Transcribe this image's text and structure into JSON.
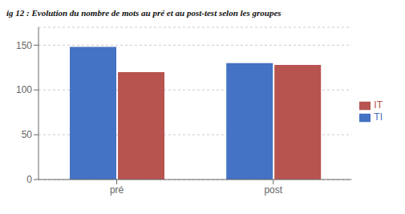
{
  "chart_data": {
    "type": "bar",
    "title": "ig 12 : Evolution du nombre de mots au pré et au post-test selon les groupes",
    "categories": [
      "pré",
      "post"
    ],
    "series": [
      {
        "name": "TI",
        "color": "#4472C4",
        "values": [
          148,
          130
        ]
      },
      {
        "name": "IT",
        "color": "#B85450",
        "values": [
          120,
          128
        ]
      }
    ],
    "ylim": [
      0,
      170
    ],
    "yticks": [
      0,
      50,
      100,
      150
    ],
    "grid": true,
    "legend": "right"
  }
}
